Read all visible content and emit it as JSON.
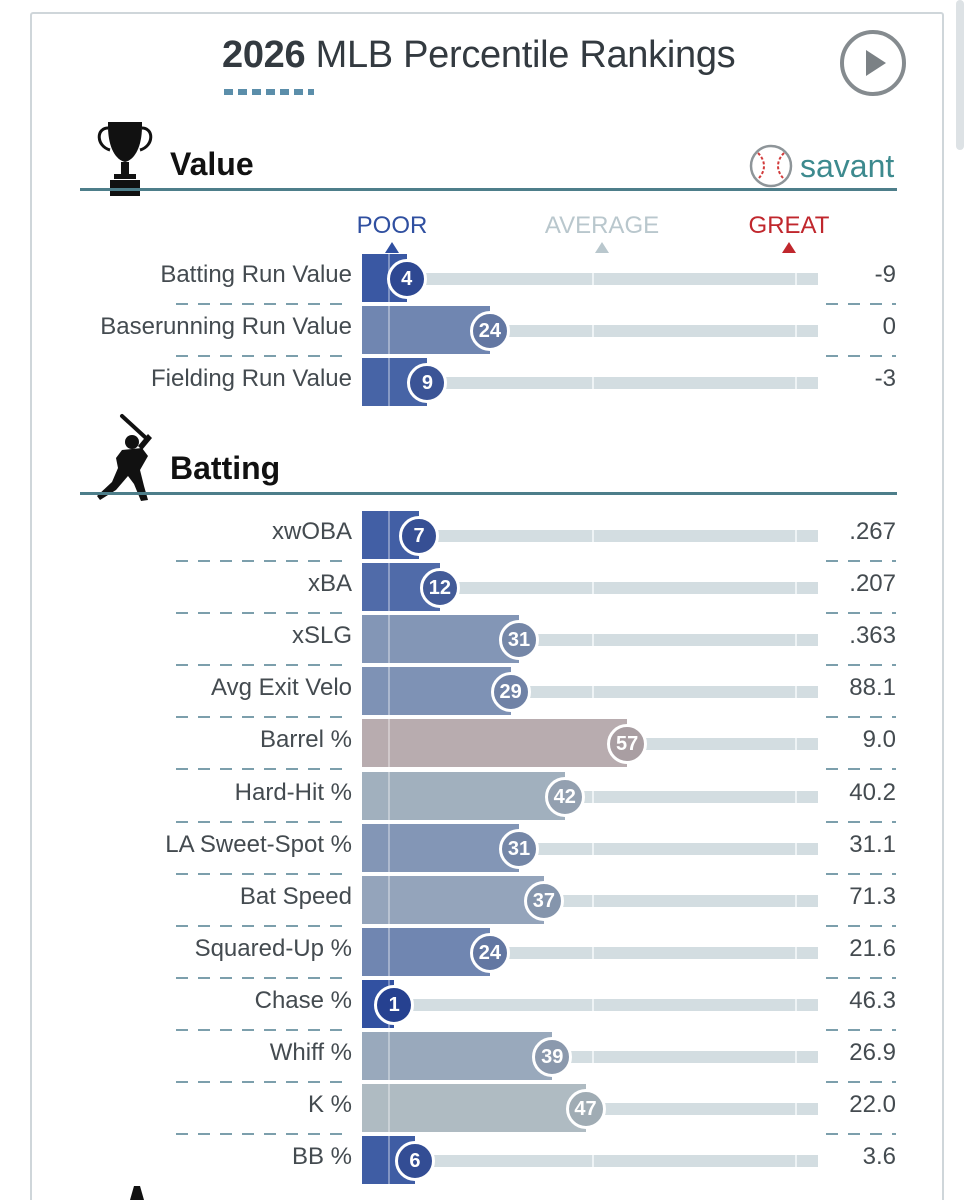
{
  "header": {
    "title_year": "2026",
    "title_rest": "MLB Percentile Rankings",
    "play_icon": "play-icon"
  },
  "brand": {
    "name": "savant",
    "icon": "baseball-icon",
    "color": "#3d8a8e"
  },
  "legend": {
    "poor": "POOR",
    "average": "AVERAGE",
    "great": "GREAT",
    "poor_color": "#2f4fa0",
    "average_color": "#b9c7cd",
    "great_color": "#c0272d"
  },
  "sections": [
    {
      "title": "Value",
      "icon": "trophy-icon",
      "rows": [
        {
          "label": "Batting Run Value",
          "percentile": 4,
          "value": "-9"
        },
        {
          "label": "Baserunning Run Value",
          "percentile": 24,
          "value": "0"
        },
        {
          "label": "Fielding Run Value",
          "percentile": 9,
          "value": "-3"
        }
      ]
    },
    {
      "title": "Batting",
      "icon": "batter-icon",
      "rows": [
        {
          "label": "xwOBA",
          "percentile": 7,
          "value": ".267"
        },
        {
          "label": "xBA",
          "percentile": 12,
          "value": ".207"
        },
        {
          "label": "xSLG",
          "percentile": 31,
          "value": ".363"
        },
        {
          "label": "Avg Exit Velo",
          "percentile": 29,
          "value": "88.1"
        },
        {
          "label": "Barrel %",
          "percentile": 57,
          "value": "9.0"
        },
        {
          "label": "Hard-Hit %",
          "percentile": 42,
          "value": "40.2"
        },
        {
          "label": "LA Sweet-Spot %",
          "percentile": 31,
          "value": "31.1"
        },
        {
          "label": "Bat Speed",
          "percentile": 37,
          "value": "71.3"
        },
        {
          "label": "Squared-Up %",
          "percentile": 24,
          "value": "21.6"
        },
        {
          "label": "Chase %",
          "percentile": 1,
          "value": "46.3"
        },
        {
          "label": "Whiff %",
          "percentile": 39,
          "value": "26.9"
        },
        {
          "label": "K %",
          "percentile": 47,
          "value": "22.0"
        },
        {
          "label": "BB %",
          "percentile": 6,
          "value": "3.6"
        }
      ]
    }
  ]
}
